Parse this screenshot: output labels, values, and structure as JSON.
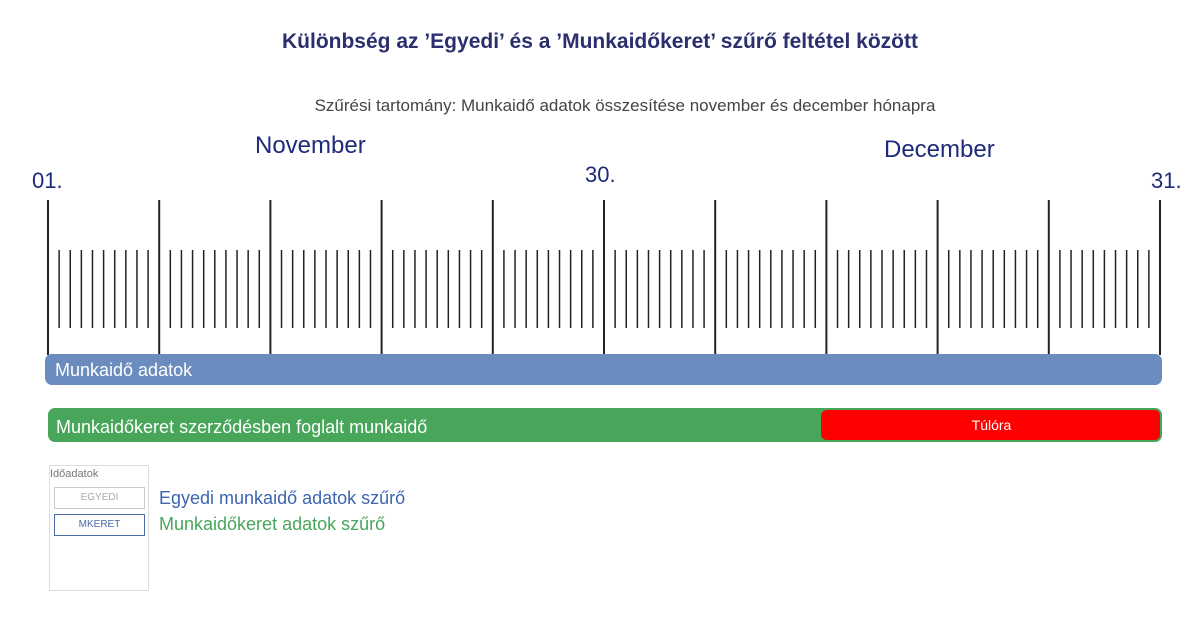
{
  "header": {
    "title": "Különbség az ’Egyedi’ és a ’Munkaidőkeret’ szűrő feltétel között",
    "subtitle": "Szűrési tartomány: Munkaidő adatok összesítése november és december hónapra"
  },
  "timeline": {
    "months": [
      "November",
      "December"
    ],
    "day_labels": [
      "01.",
      "30.",
      "31."
    ]
  },
  "bars": {
    "worktime": "Munkaidő adatok",
    "frame": "Munkaidőkeret szerződésben foglalt munkaidő",
    "overtime": "Túlóra"
  },
  "filter_panel": {
    "title": "Időadatok",
    "buttons": [
      "EGYEDI",
      "MKERET"
    ]
  },
  "legend": [
    "Egyedi munkaidő adatok szűrő",
    "Munkaidőkeret adatok szűrő"
  ]
}
